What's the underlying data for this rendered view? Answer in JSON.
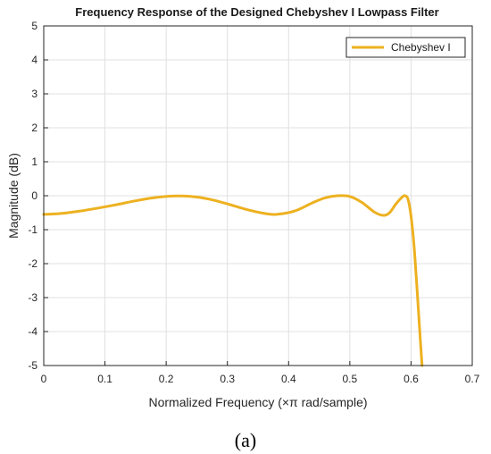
{
  "chart_data": {
    "type": "line",
    "title": "Frequency Response of the Designed Chebyshev I Lowpass Filter",
    "xlabel": "Normalized Frequency (×π rad/sample)",
    "ylabel": "Magnitude (dB)",
    "xlim": [
      0,
      0.7
    ],
    "ylim": [
      -5,
      5
    ],
    "xticks": [
      0,
      0.1,
      0.2,
      0.3,
      0.4,
      0.5,
      0.6,
      0.7
    ],
    "xtick_labels": [
      "0",
      "0.1",
      "0.2",
      "0.3",
      "0.4",
      "0.5",
      "0.6",
      "0.7"
    ],
    "yticks": [
      -5,
      -4,
      -3,
      -2,
      -1,
      0,
      1,
      2,
      3,
      4,
      5
    ],
    "ytick_labels": [
      "-5",
      "-4",
      "-3",
      "-2",
      "-1",
      "0",
      "1",
      "2",
      "3",
      "4",
      "5"
    ],
    "grid": true,
    "legend_position": "top-right",
    "series": [
      {
        "name": "Chebyshev I",
        "color": "#EDB120",
        "x": [
          0,
          0.03,
          0.06,
          0.09,
          0.12,
          0.15,
          0.18,
          0.21,
          0.24,
          0.27,
          0.3,
          0.33,
          0.36,
          0.38,
          0.41,
          0.44,
          0.46,
          0.48,
          0.5,
          0.52,
          0.54,
          0.555,
          0.565,
          0.575,
          0.585,
          0.59,
          0.595,
          0.6,
          0.605,
          0.61,
          0.615,
          0.618
        ],
        "y": [
          -0.55,
          -0.52,
          -0.45,
          -0.36,
          -0.26,
          -0.15,
          -0.06,
          -0.01,
          -0.02,
          -0.1,
          -0.24,
          -0.4,
          -0.52,
          -0.55,
          -0.45,
          -0.2,
          -0.06,
          0.0,
          -0.02,
          -0.2,
          -0.48,
          -0.58,
          -0.5,
          -0.25,
          -0.05,
          0.0,
          -0.1,
          -0.6,
          -1.5,
          -2.8,
          -4.2,
          -5.0
        ]
      }
    ]
  },
  "caption": "(a)"
}
